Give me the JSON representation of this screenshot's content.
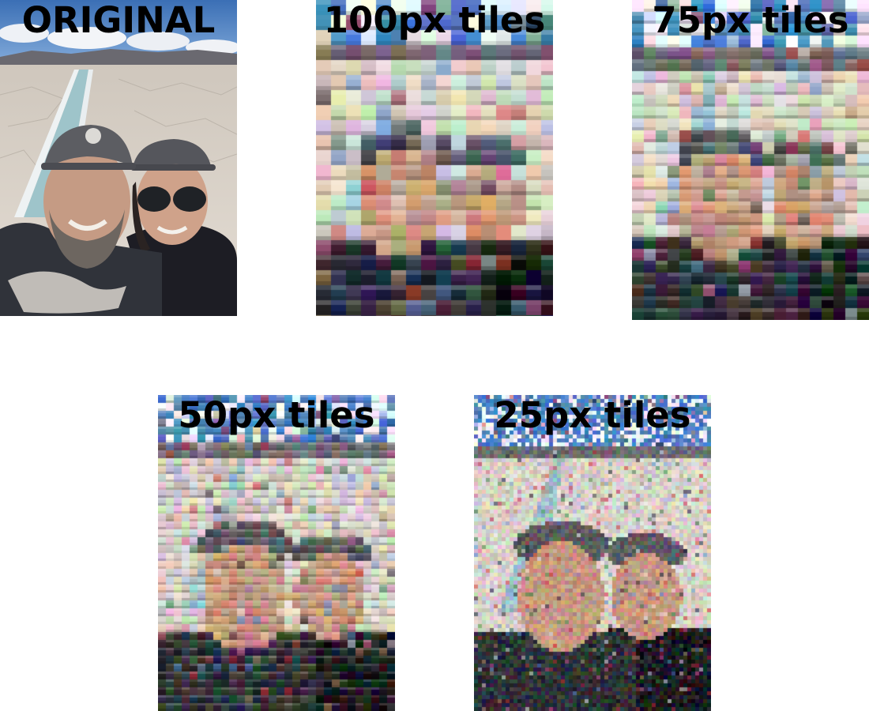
{
  "panels": [
    {
      "id": "original",
      "title": "ORIGINAL"
    },
    {
      "id": "t100",
      "title": "100px tiles"
    },
    {
      "id": "t75",
      "title": "75px tiles"
    },
    {
      "id": "t50",
      "title": "50px tiles"
    },
    {
      "id": "t25",
      "title": "25px tiles"
    }
  ],
  "colors": {
    "sky": "#4a7fc1",
    "cloud": "#f2f4f7",
    "mountains": "#6d6c72",
    "salt_flat": "#d9d2c9",
    "water_channel": "#9fc3c9",
    "shirt_dark": "#2f3238",
    "jacket_black": "#1c1c22",
    "skin": "#c79a82",
    "cap_grey": "#5b5c61"
  }
}
